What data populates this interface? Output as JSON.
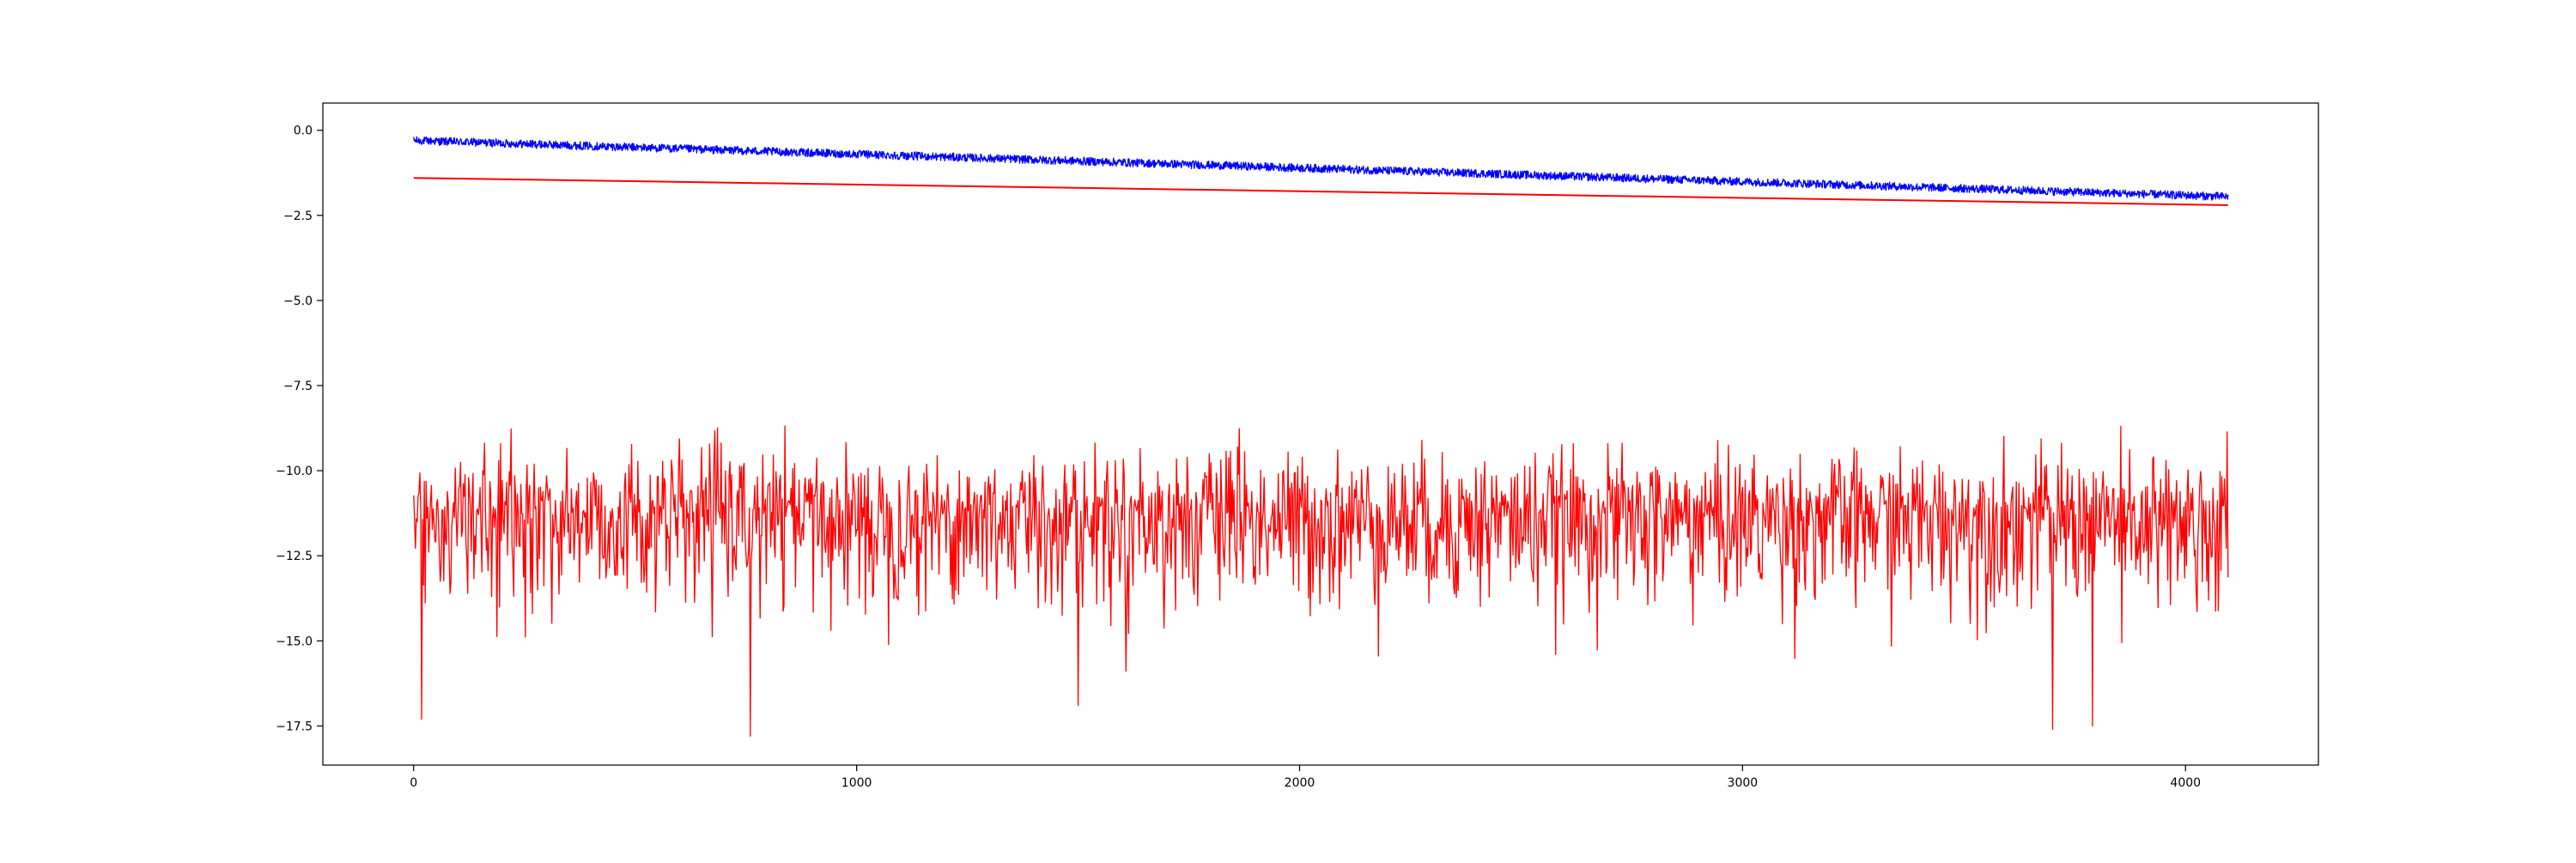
{
  "chart_data": {
    "type": "line",
    "title": "",
    "xlabel": "",
    "ylabel": "",
    "xlim": [
      -205,
      4300
    ],
    "ylim": [
      -18.65,
      0.8
    ],
    "grid": false,
    "legend": "none",
    "x_ticks": [
      0,
      1000,
      2000,
      3000,
      4000
    ],
    "x_tick_labels": [
      "0",
      "1000",
      "2000",
      "3000",
      "4000"
    ],
    "y_ticks": [
      0.0,
      -2.5,
      -5.0,
      -7.5,
      -10.0,
      -12.5,
      -15.0,
      -17.5
    ],
    "y_tick_labels": [
      "0.0",
      "−2.5",
      "−5.0",
      "−7.5",
      "−10.0",
      "−12.5",
      "−15.0",
      "−17.5"
    ],
    "x_range": [
      0,
      4096
    ],
    "series": [
      {
        "color": "#0000ff",
        "description": "noisy declining band",
        "approx_trend": {
          "x": [
            0,
            4096
          ],
          "y": [
            -0.3,
            -1.95
          ]
        },
        "noise_amplitude": 0.12
      },
      {
        "color": "#ff0000",
        "description": "straight line",
        "approx_trend": {
          "x": [
            0,
            4096
          ],
          "y": [
            -1.4,
            -2.2
          ]
        }
      },
      {
        "color": "#ff0000",
        "description": "high-variance noisy series",
        "approx_mean": -11.3,
        "approx_max": -8.6,
        "approx_min": -17.8,
        "notable_dips": [
          {
            "x": 18,
            "y": -17.3
          },
          {
            "x": 760,
            "y": -17.8
          },
          {
            "x": 1500,
            "y": -16.9
          },
          {
            "x": 3700,
            "y": -17.6
          },
          {
            "x": 3790,
            "y": -17.5
          }
        ]
      }
    ]
  }
}
